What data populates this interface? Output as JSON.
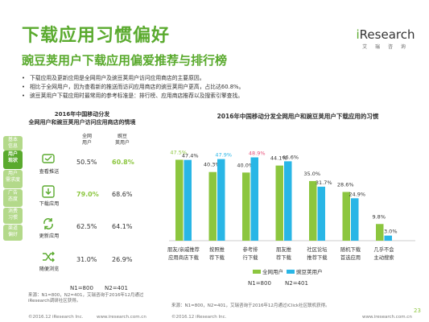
{
  "header": {
    "title": "下载应用习惯偏好",
    "subtitle": "豌豆荚用户下载应用偏爱推荐与排行榜",
    "logo_main_i": "i",
    "logo_main_rest": "Research",
    "logo_sub": "艾 瑞 咨 询"
  },
  "bullets": [
    "下载应用及更新应用是全网用户及豌豆荚用户访问应用商店的主要原因。",
    "相比于全网用户，因为查看新的推送而访问应用商店的豌豆荚用户更高，占比达60.8%。",
    "豌豆荚用户下载应用时最常用的参考标准是：排行榜、应用商店推荐以及搜索引擎查找。"
  ],
  "left_tabs": [
    {
      "label": "基本\n信息",
      "active": false
    },
    {
      "label": "用户\n现状",
      "active": true
    },
    {
      "label": "用户\n需求度",
      "active": false
    },
    {
      "label": "广告\n态度",
      "active": false
    },
    {
      "label": "消费\n习惯",
      "active": false
    },
    {
      "label": "渠道\n偏好",
      "active": false
    }
  ],
  "left_table": {
    "title_line1": "2016年中国移动分发",
    "title_line2": "全网用户和豌豆荚用户访问应用商店的情境",
    "col1_line1": "全网",
    "col1_line2": "用户",
    "col2_line1": "豌豆",
    "col2_line2": "荚用户",
    "rows": [
      {
        "label": "查看推送",
        "icon": "bell-icon",
        "v1": "50.5%",
        "v2": "60.8%",
        "hl": 2
      },
      {
        "label": "下载应用",
        "icon": "download-icon",
        "v1": "79.0%",
        "v2": "68.6%",
        "hl": 1
      },
      {
        "label": "更新应用",
        "icon": "update-icon",
        "v1": "62.5%",
        "v2": "64.1%",
        "hl": 0
      },
      {
        "label": "随便浏览",
        "icon": "shuffle-icon",
        "v1": "31.0%",
        "v2": "26.9%",
        "hl": 0
      }
    ],
    "n1": "N1=800",
    "n2": "N2=401"
  },
  "chart_data": {
    "type": "bar",
    "title": "2016年中国移动分发全网用户和豌豆荚用户下载应用的习惯",
    "categories": [
      [
        "朋友/亲戚推荐",
        "应用商店下载"
      ],
      [
        "按照推",
        "荐下载"
      ],
      [
        "参考排",
        "行下载"
      ],
      [
        "朋友推",
        "荐下载"
      ],
      [
        "社区论坛",
        "推荐下载"
      ],
      [
        "随机下载",
        "首选应用"
      ],
      [
        "几乎不会",
        "主动搜索"
      ]
    ],
    "series": [
      {
        "name": "全网用户",
        "color": "#8cc63f",
        "values": [
          47.5,
          40.3,
          40.0,
          44.1,
          35.0,
          28.6,
          9.8
        ]
      },
      {
        "name": "豌豆荚用户",
        "color": "#29b6e6",
        "values": [
          47.4,
          47.9,
          48.9,
          46.6,
          31.7,
          24.9,
          3.0
        ]
      }
    ],
    "labels": [
      [
        "47.5%",
        "47.4%"
      ],
      [
        "40.3%",
        "47.9%"
      ],
      [
        "40.0%",
        "48.9%"
      ],
      [
        "44.1%",
        "46.6%"
      ],
      [
        "35.0%",
        "31.7%"
      ],
      [
        "28.6%",
        "24.9%"
      ],
      [
        "9.8%",
        "3.0%"
      ]
    ],
    "highlight_labels": [
      [
        true,
        false
      ],
      [
        false,
        true
      ],
      [
        false,
        true
      ],
      [
        false,
        false
      ],
      [
        false,
        false
      ],
      [
        false,
        false
      ],
      [
        false,
        false
      ]
    ],
    "highlight_colors": [
      "#8cc63f",
      "#29b6e6",
      "#e8507a"
    ],
    "ylim": [
      0,
      60
    ],
    "legend_position": "bottom",
    "grid": false,
    "n1": "N1=800",
    "n2": "N2=401"
  },
  "notes": {
    "left": "来源：N1=800，N2=401，艾瑞咨询于2016年12月通过iResearch调研社区获得。",
    "right": "来源：N1=800，N2=401，艾瑞咨询于2016年12月通过iClick社区联机获得。"
  },
  "footer": {
    "copy_left": "©2016.12 iResearch Inc.",
    "url_left": "www.iresearch.com.cn",
    "copy_right": "©2016.12 iResearch Inc.",
    "url_right": "www.iresearch.com.cn",
    "page": "23"
  }
}
